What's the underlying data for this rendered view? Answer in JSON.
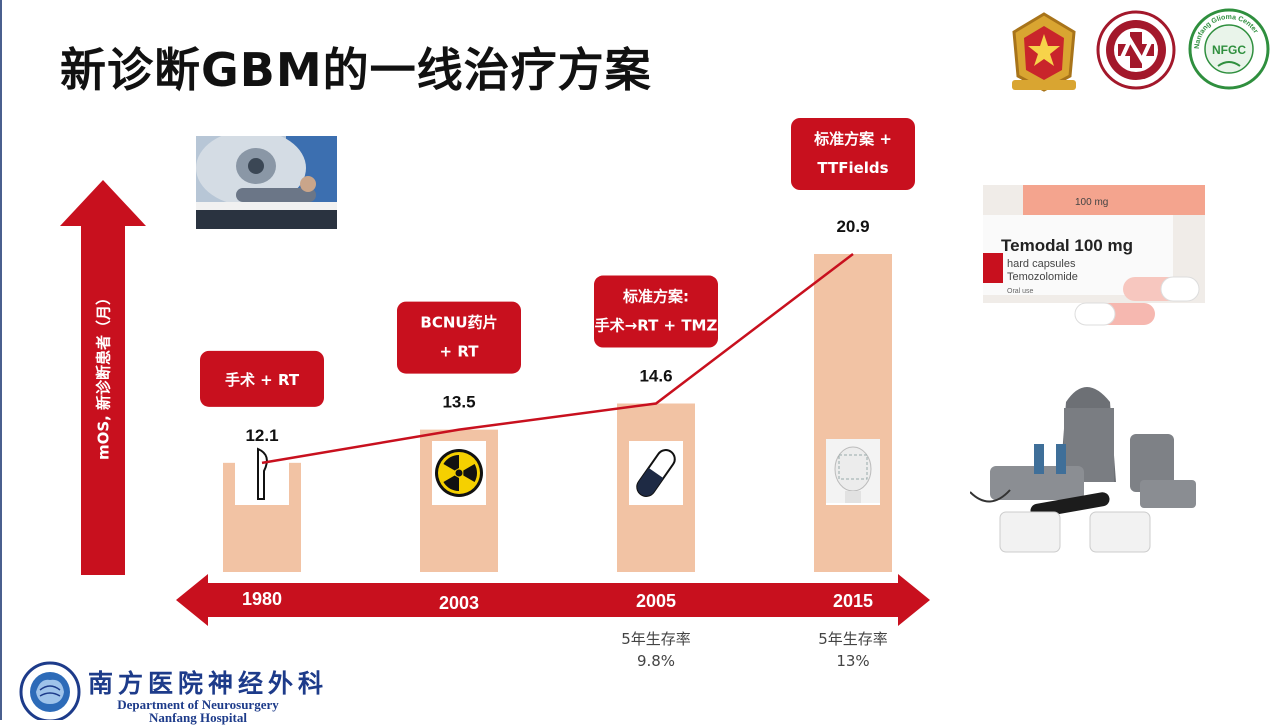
{
  "title": "新诊断GBM的一线治疗方案",
  "logos": {
    "nfgc_text": "NFGC",
    "nfgc_ring": "Nanfang Glioma Center"
  },
  "footer": {
    "cn": "南方医院神经外科",
    "en_line1": "Department of Neurosurgery",
    "en_line2": "Nanfang Hospital"
  },
  "photos": {
    "temodal_brand": "Temodal 100 mg",
    "temodal_line2": "hard capsules",
    "temodal_line3": "Temozolomide",
    "temodal_line4": "Oral use",
    "temodal_cap": "100 mg"
  },
  "chart_data": {
    "type": "bar",
    "categories": [
      "1980",
      "2003",
      "2005",
      "2015"
    ],
    "values": [
      12.1,
      13.5,
      14.6,
      20.9
    ],
    "ylabel": "mOS, 新诊断患者（月）",
    "ylim": [
      0,
      22
    ],
    "line_overlay": true,
    "treatments": [
      [
        "手术 + RT"
      ],
      [
        "BCNU药片",
        "+ RT"
      ],
      [
        "标准方案:",
        "手术→RT + TMZ"
      ],
      [
        "标准方案 +",
        "TTFields"
      ]
    ],
    "icons": [
      "scalpel-icon",
      "radiation-icon",
      "capsule-icon",
      "ttfields-head-icon"
    ],
    "survival_rates": [
      null,
      null,
      {
        "label": "5年生存率",
        "value": "9.8%"
      },
      {
        "label": "5年生存率",
        "value": "13%"
      }
    ],
    "colors": {
      "bar": "#f2c3a4",
      "arrow": "#c8101e",
      "badge": "#c8101e",
      "line": "#c8101e"
    }
  }
}
